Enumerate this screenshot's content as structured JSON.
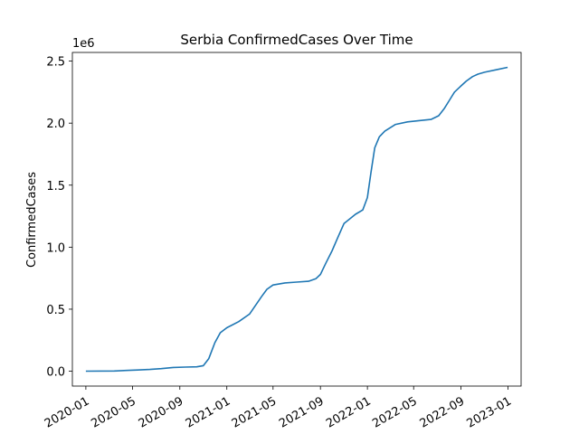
{
  "chart_data": {
    "type": "line",
    "title": "Serbia  ConfirmedCases Over Time",
    "xlabel": "",
    "ylabel": "ConfirmedCases",
    "y_offset_label": "1e6",
    "y_scale": 1000000,
    "xlim": [
      "2019-11-27",
      "2023-02-04"
    ],
    "ylim": [
      -120000,
      2570000
    ],
    "grid": false,
    "legend": "none",
    "line_color": "#1f77b4",
    "x_ticks": [
      "2020-01",
      "2020-05",
      "2020-09",
      "2021-01",
      "2021-05",
      "2021-09",
      "2022-01",
      "2022-05",
      "2022-09",
      "2023-01"
    ],
    "y_ticks": [
      "0.0",
      "0.5",
      "1.0",
      "1.5",
      "2.0",
      "2.5"
    ],
    "series": [
      {
        "x": [
          "2020-01-01",
          "2020-03-15",
          "2020-04-15",
          "2020-05-15",
          "2020-06-15",
          "2020-07-15",
          "2020-08-15",
          "2020-09-15",
          "2020-10-15",
          "2020-11-01",
          "2020-11-15",
          "2020-12-01",
          "2020-12-15",
          "2021-01-01",
          "2021-02-01",
          "2021-03-01",
          "2021-04-01",
          "2021-04-15",
          "2021-05-01",
          "2021-06-01",
          "2021-07-01",
          "2021-08-01",
          "2021-08-20",
          "2021-09-01",
          "2021-09-15",
          "2021-10-01",
          "2021-10-15",
          "2021-11-01",
          "2021-12-01",
          "2021-12-20",
          "2022-01-01",
          "2022-01-10",
          "2022-01-20",
          "2022-02-01",
          "2022-02-15",
          "2022-03-15",
          "2022-04-15",
          "2022-05-15",
          "2022-06-15",
          "2022-07-05",
          "2022-07-20",
          "2022-08-01",
          "2022-08-15",
          "2022-09-01",
          "2022-09-15",
          "2022-10-01",
          "2022-10-15",
          "2022-11-01",
          "2022-12-01",
          "2022-12-31"
        ],
        "y": [
          0,
          2000,
          6000,
          10000,
          14000,
          21000,
          30000,
          33000,
          35000,
          45000,
          100000,
          230000,
          310000,
          350000,
          400000,
          460000,
          600000,
          660000,
          695000,
          712000,
          718000,
          725000,
          745000,
          780000,
          870000,
          970000,
          1070000,
          1190000,
          1265000,
          1300000,
          1400000,
          1600000,
          1800000,
          1890000,
          1935000,
          1990000,
          2010000,
          2020000,
          2030000,
          2060000,
          2120000,
          2180000,
          2250000,
          2300000,
          2340000,
          2375000,
          2395000,
          2410000,
          2430000,
          2450000
        ]
      }
    ]
  }
}
